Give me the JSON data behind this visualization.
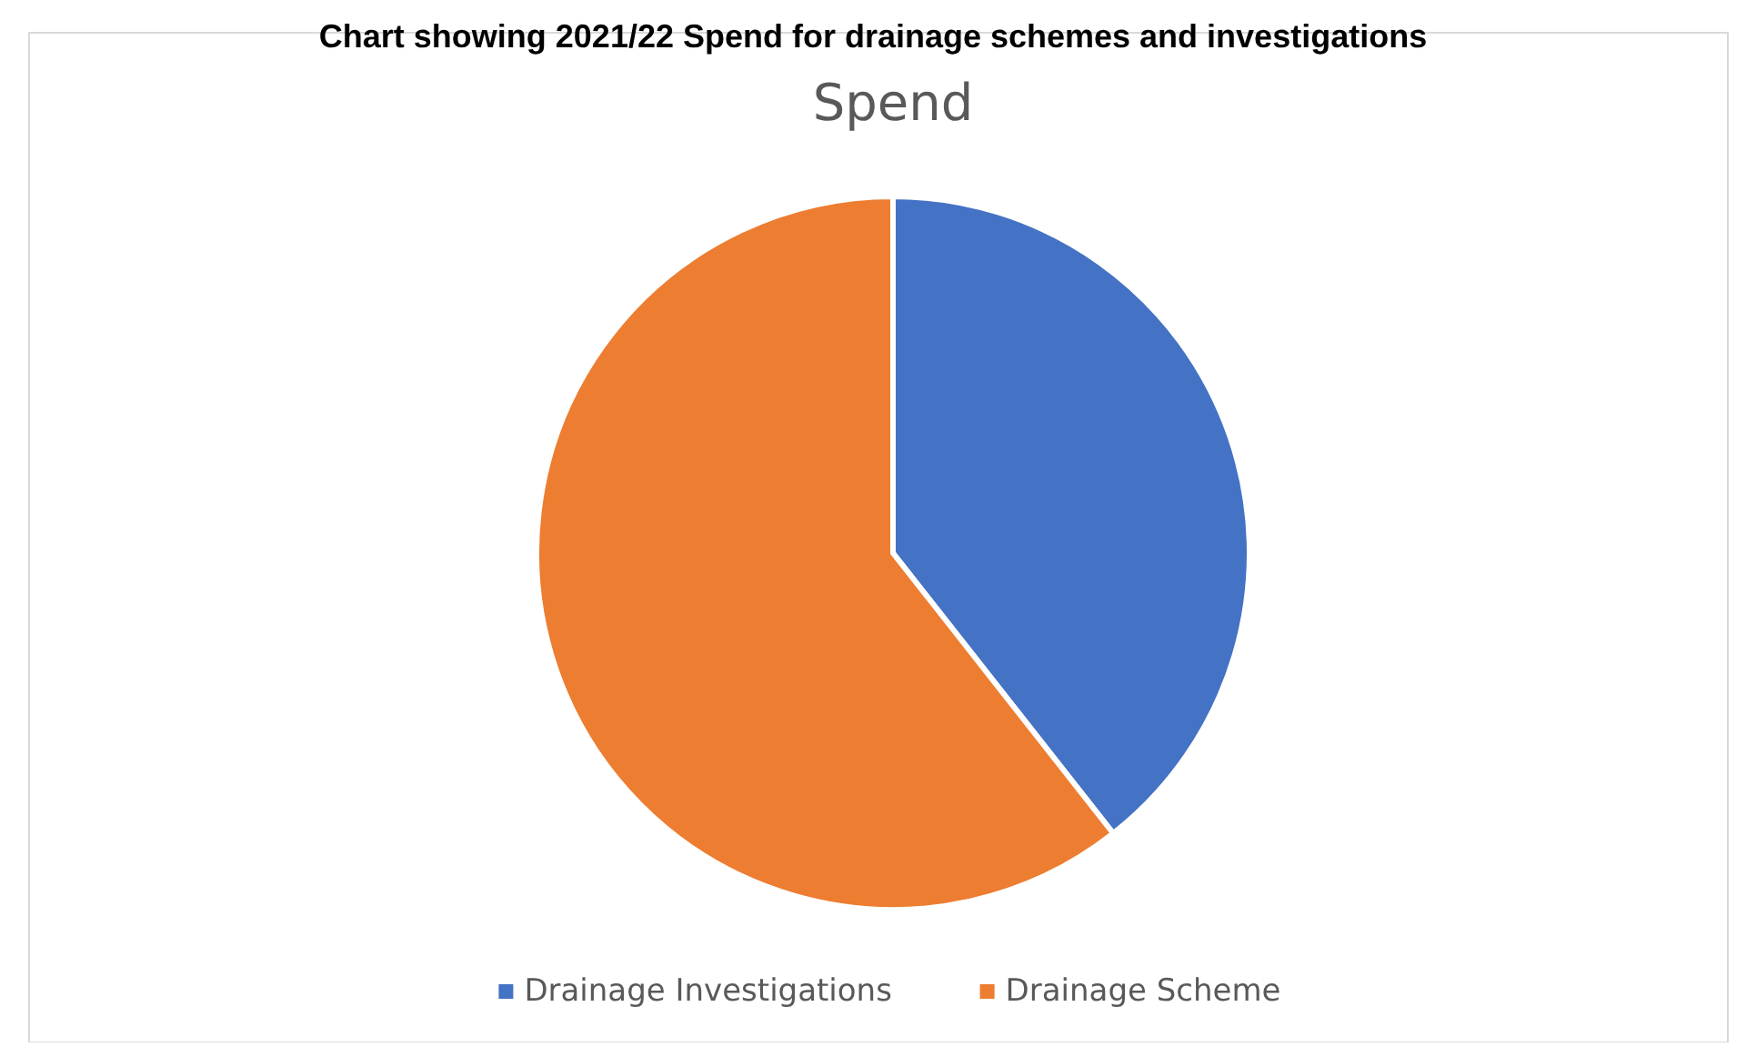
{
  "chart_data": {
    "type": "pie",
    "title": "Chart showing 2021/22 Spend for drainage schemes and investigations",
    "subtitle": "Spend",
    "categories": [
      "Drainage Investigations",
      "Drainage Scheme"
    ],
    "values": [
      39.4,
      60.6
    ],
    "colors": [
      "#4472c4",
      "#ed7d31"
    ],
    "legend": "bottom"
  }
}
